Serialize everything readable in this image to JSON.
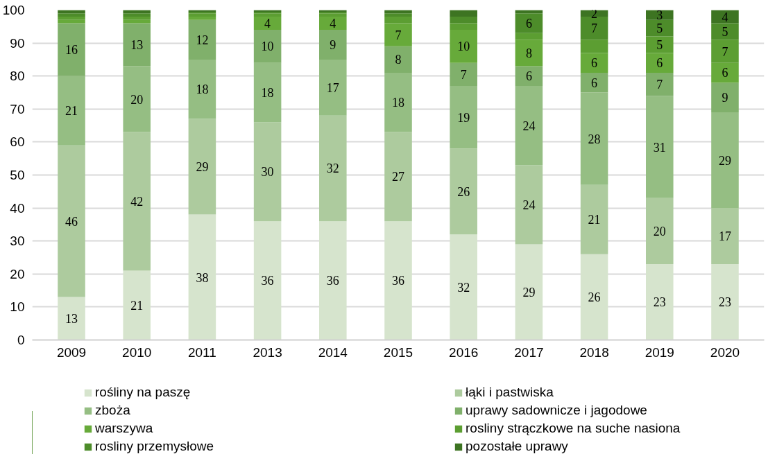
{
  "chart_data": {
    "type": "bar",
    "stacked": true,
    "categories": [
      "2009",
      "2010",
      "2011",
      "2013",
      "2014",
      "2015",
      "2016",
      "2017",
      "2018",
      "2019",
      "2020"
    ],
    "ylim": [
      0,
      100
    ],
    "yticks": [
      0,
      10,
      20,
      30,
      40,
      50,
      60,
      70,
      80,
      90,
      100
    ],
    "grid": "y",
    "legend": "bottom",
    "series": [
      {
        "name": "rośliny na paszę",
        "color": "#d6e4cd",
        "values": [
          13,
          21,
          38,
          36,
          36,
          36,
          32,
          29,
          26,
          23,
          23
        ],
        "value_labels": [
          "13",
          "21",
          "38",
          "36",
          "36",
          "36",
          "32",
          "29",
          "26",
          "23",
          "23"
        ]
      },
      {
        "name": "łąki i pastwiska",
        "color": "#adcb9e",
        "values": [
          46,
          42,
          29,
          30,
          32,
          27,
          26,
          24,
          21,
          20,
          17
        ],
        "value_labels": [
          "46",
          "42",
          "29",
          "30",
          "32",
          "27",
          "26",
          "24",
          "21",
          "20",
          "17"
        ]
      },
      {
        "name": "zboża",
        "color": "#95be83",
        "values": [
          21,
          20,
          18,
          18,
          17,
          18,
          19,
          24,
          28,
          31,
          29
        ],
        "value_labels": [
          "21",
          "20",
          "18",
          "18",
          "17",
          "18",
          "19",
          "24",
          "28",
          "31",
          "29"
        ]
      },
      {
        "name": "uprawy sadownicze i jagodowe",
        "color": "#80b06b",
        "values": [
          16,
          13,
          12,
          10,
          9,
          8,
          7,
          6,
          6,
          7,
          9
        ],
        "value_labels": [
          "16",
          "13",
          "12",
          "10",
          "9",
          "8",
          "7",
          "6",
          "6",
          "7",
          "9"
        ]
      },
      {
        "name": "warszywa",
        "color": "#67aa3a",
        "values": [
          1,
          1,
          1,
          4,
          4,
          7,
          10,
          8,
          6,
          6,
          6
        ],
        "value_labels": [
          null,
          null,
          null,
          "4",
          "4",
          "7",
          "10",
          "8",
          "6",
          "6",
          "6"
        ]
      },
      {
        "name": "rosliny strączkowe na suche nasiona",
        "color": "#5c9e32",
        "values": [
          1,
          1,
          1,
          1,
          1,
          2,
          2,
          2,
          4,
          5,
          7
        ],
        "value_labels": [
          null,
          null,
          null,
          null,
          null,
          null,
          null,
          null,
          null,
          "5",
          "7"
        ]
      },
      {
        "name": "rosliny przemysłowe",
        "color": "#4d8c2a",
        "values": [
          1,
          1,
          0.5,
          0.5,
          0.5,
          1,
          2,
          6,
          7,
          5,
          5
        ],
        "value_labels": [
          null,
          null,
          null,
          null,
          null,
          null,
          null,
          "6",
          "7",
          "5",
          "5"
        ]
      },
      {
        "name": "pozostałe uprawy",
        "color": "#3d7422",
        "values": [
          1,
          1,
          0.5,
          0.5,
          0.5,
          1,
          2,
          1,
          2,
          3,
          4
        ],
        "value_labels": [
          null,
          null,
          null,
          null,
          null,
          null,
          null,
          null,
          "2",
          "3",
          "4"
        ]
      }
    ]
  }
}
